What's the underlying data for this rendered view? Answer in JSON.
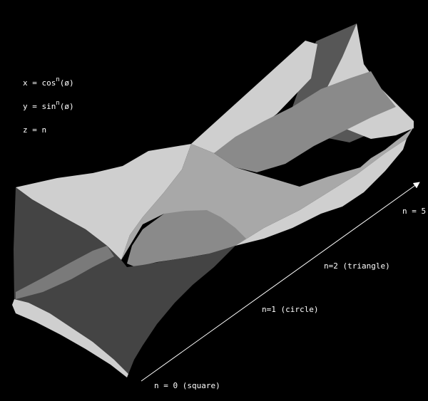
{
  "equations": {
    "x": {
      "lhs": "x = cos",
      "exp": "n",
      "arg": "(ø)"
    },
    "y": {
      "lhs": "y = sin",
      "exp": "n",
      "arg": "(ø)"
    },
    "z": {
      "text": "z = n"
    }
  },
  "axis_labels": {
    "n0": "n = 0 (square)",
    "n1": "n=1 (circle)",
    "n2": "n=2 (triangle)",
    "n5": "n = 5"
  },
  "colors": {
    "background": "#000000",
    "surface_light": "#cfcfcf",
    "surface_mid": "#a8a8a8",
    "surface_gray": "#8a8a8a",
    "surface_dark": "#575757",
    "surface_darkest": "#444444",
    "axis": "#ffffff"
  }
}
